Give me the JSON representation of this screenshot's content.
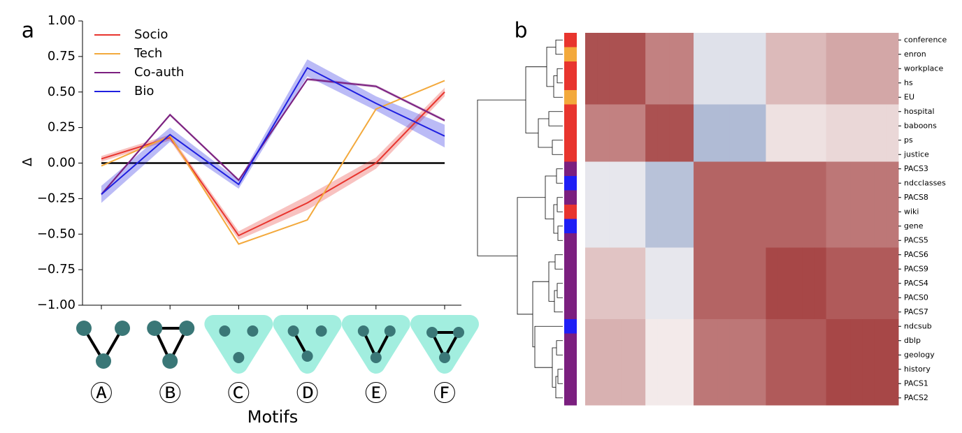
{
  "chart_data": [
    {
      "type": "line",
      "panel_label": "a",
      "x_label": "Motifs",
      "y_label": "Δ",
      "categories": [
        "Ⓐ",
        "Ⓑ",
        "Ⓒ",
        "Ⓓ",
        "Ⓔ",
        "Ⓕ"
      ],
      "ylim": [
        -1,
        1
      ],
      "yticks": [
        {
          "value": -1,
          "label": "−1.00"
        },
        {
          "value": -0.75,
          "label": "−0.75"
        },
        {
          "value": -0.5,
          "label": "−0.50"
        },
        {
          "value": -0.25,
          "label": "−0.25"
        },
        {
          "value": 0,
          "label": "0.00"
        },
        {
          "value": 0.25,
          "label": "0.25"
        },
        {
          "value": 0.5,
          "label": "0.50"
        },
        {
          "value": 0.75,
          "label": "0.75"
        },
        {
          "value": 1,
          "label": "1.00"
        }
      ],
      "hline": 0,
      "legend": "upper left",
      "series": [
        {
          "name": "Socio",
          "color": "#e8352e",
          "values": [
            0.03,
            0.18,
            -0.51,
            -0.28,
            0.0,
            0.5
          ],
          "errors": [
            0.02,
            0.02,
            0.03,
            0.05,
            0.04,
            0.03
          ]
        },
        {
          "name": "Tech",
          "color": "#f3a93c",
          "values": [
            -0.02,
            0.19,
            -0.57,
            -0.4,
            0.38,
            0.58
          ]
        },
        {
          "name": "Co-auth",
          "color": "#7b1f7f",
          "values": [
            -0.22,
            0.34,
            -0.12,
            0.59,
            0.54,
            0.3
          ],
          "errors": [
            0.01,
            0.01,
            0.01,
            0.01,
            0.01,
            0.01
          ]
        },
        {
          "name": "Bio",
          "color": "#1f1fe0",
          "values": [
            -0.22,
            0.2,
            -0.15,
            0.67,
            0.42,
            0.19
          ],
          "errors": [
            0.06,
            0.05,
            0.03,
            0.06,
            0.05,
            0.08
          ]
        }
      ]
    },
    {
      "type": "heatmap",
      "panel_label": "b",
      "clim": [
        -1,
        1
      ],
      "colormap": [
        "#5a76b0",
        "#f7f4f4",
        "#9e3434"
      ],
      "rows": [
        "conference",
        "enron",
        "workplace",
        "hs",
        "EU",
        "hospital",
        "baboons",
        "ps",
        "justice",
        "PACS3",
        "ndcclasses",
        "PACS8",
        "wiki",
        "gene",
        "PACS5",
        "PACS6",
        "PACS9",
        "PACS4",
        "PACS0",
        "PACS7",
        "ndcsub",
        "dblp",
        "geology",
        "history",
        "PACS1",
        "PACS2"
      ],
      "row_colors": [
        "#e8352e",
        "#f3a93c",
        "#e8352e",
        "#e8352e",
        "#f3a93c",
        "#e8352e",
        "#e8352e",
        "#e8352e",
        "#e8352e",
        "#7b1f7f",
        "#1f1ff5",
        "#7b1f7f",
        "#e8352e",
        "#1f1ff5",
        "#7b1f7f",
        "#7b1f7f",
        "#7b1f7f",
        "#7b1f7f",
        "#7b1f7f",
        "#7b1f7f",
        "#1f1ff5",
        "#7b1f7f",
        "#7b1f7f",
        "#7b1f7f",
        "#7b1f7f",
        "#7b1f7f"
      ],
      "matrix": [
        [
          0.85,
          0.85,
          0.85,
          0.85,
          0.85,
          0.6,
          0.6,
          0.6,
          0.6,
          -0.15,
          -0.15,
          -0.15,
          -0.15,
          -0.15,
          -0.15,
          0.3,
          0.3,
          0.3,
          0.3,
          0.3,
          0.4,
          0.4,
          0.4,
          0.4,
          0.4,
          0.4
        ],
        [
          0.85,
          0.85,
          0.85,
          0.85,
          0.85,
          0.6,
          0.6,
          0.6,
          0.6,
          -0.15,
          -0.15,
          -0.15,
          -0.15,
          -0.15,
          -0.15,
          0.3,
          0.3,
          0.3,
          0.3,
          0.3,
          0.4,
          0.4,
          0.4,
          0.4,
          0.4,
          0.4
        ],
        [
          0.85,
          0.85,
          0.85,
          0.85,
          0.85,
          0.6,
          0.6,
          0.6,
          0.6,
          -0.15,
          -0.15,
          -0.15,
          -0.15,
          -0.15,
          -0.15,
          0.3,
          0.3,
          0.3,
          0.3,
          0.3,
          0.4,
          0.4,
          0.4,
          0.4,
          0.4,
          0.4
        ],
        [
          0.85,
          0.85,
          0.85,
          0.85,
          0.85,
          0.6,
          0.6,
          0.6,
          0.6,
          -0.15,
          -0.15,
          -0.15,
          -0.15,
          -0.15,
          -0.15,
          0.3,
          0.3,
          0.3,
          0.3,
          0.3,
          0.4,
          0.4,
          0.4,
          0.4,
          0.4,
          0.4
        ],
        [
          0.85,
          0.85,
          0.85,
          0.85,
          0.85,
          0.6,
          0.6,
          0.6,
          0.6,
          -0.15,
          -0.15,
          -0.15,
          -0.15,
          -0.15,
          -0.15,
          0.3,
          0.3,
          0.3,
          0.3,
          0.3,
          0.4,
          0.4,
          0.4,
          0.4,
          0.4,
          0.4
        ],
        [
          0.6,
          0.6,
          0.6,
          0.6,
          0.6,
          0.85,
          0.85,
          0.85,
          0.85,
          -0.45,
          -0.45,
          -0.45,
          -0.45,
          -0.45,
          -0.45,
          0.1,
          0.1,
          0.1,
          0.1,
          0.1,
          0.15,
          0.15,
          0.15,
          0.15,
          0.15,
          0.15
        ],
        [
          0.6,
          0.6,
          0.6,
          0.6,
          0.6,
          0.85,
          0.85,
          0.85,
          0.85,
          -0.45,
          -0.45,
          -0.45,
          -0.45,
          -0.45,
          -0.45,
          0.1,
          0.1,
          0.1,
          0.1,
          0.1,
          0.15,
          0.15,
          0.15,
          0.15,
          0.15,
          0.15
        ],
        [
          0.6,
          0.6,
          0.6,
          0.6,
          0.6,
          0.85,
          0.85,
          0.85,
          0.85,
          -0.45,
          -0.45,
          -0.45,
          -0.45,
          -0.45,
          -0.45,
          0.1,
          0.1,
          0.1,
          0.1,
          0.1,
          0.15,
          0.15,
          0.15,
          0.15,
          0.15,
          0.15
        ],
        [
          0.6,
          0.6,
          0.6,
          0.6,
          0.6,
          0.85,
          0.85,
          0.85,
          0.85,
          -0.45,
          -0.45,
          -0.45,
          -0.45,
          -0.45,
          -0.45,
          0.1,
          0.1,
          0.1,
          0.1,
          0.1,
          0.15,
          0.15,
          0.15,
          0.15,
          0.15,
          0.15
        ],
        [
          -0.1,
          -0.1,
          -0.1,
          -0.1,
          -0.1,
          -0.4,
          -0.4,
          -0.4,
          -0.4,
          0.75,
          0.75,
          0.75,
          0.75,
          0.75,
          0.75,
          0.75,
          0.75,
          0.75,
          0.75,
          0.75,
          0.65,
          0.65,
          0.65,
          0.65,
          0.65,
          0.65
        ],
        [
          -0.1,
          -0.1,
          -0.1,
          -0.1,
          -0.1,
          -0.4,
          -0.4,
          -0.4,
          -0.4,
          0.75,
          0.75,
          0.75,
          0.75,
          0.75,
          0.75,
          0.75,
          0.75,
          0.75,
          0.75,
          0.75,
          0.65,
          0.65,
          0.65,
          0.65,
          0.65,
          0.65
        ],
        [
          -0.1,
          -0.1,
          -0.1,
          -0.1,
          -0.1,
          -0.4,
          -0.4,
          -0.4,
          -0.4,
          0.75,
          0.75,
          0.75,
          0.75,
          0.75,
          0.75,
          0.75,
          0.75,
          0.75,
          0.75,
          0.75,
          0.65,
          0.65,
          0.65,
          0.65,
          0.65,
          0.65
        ],
        [
          -0.1,
          -0.1,
          -0.1,
          -0.1,
          -0.1,
          -0.4,
          -0.4,
          -0.4,
          -0.4,
          0.75,
          0.75,
          0.75,
          0.75,
          0.75,
          0.75,
          0.75,
          0.75,
          0.75,
          0.75,
          0.75,
          0.65,
          0.65,
          0.65,
          0.65,
          0.65,
          0.65
        ],
        [
          -0.1,
          -0.1,
          -0.1,
          -0.1,
          -0.1,
          -0.4,
          -0.4,
          -0.4,
          -0.4,
          0.75,
          0.75,
          0.75,
          0.75,
          0.75,
          0.75,
          0.75,
          0.75,
          0.75,
          0.75,
          0.75,
          0.65,
          0.65,
          0.65,
          0.65,
          0.65,
          0.65
        ],
        [
          -0.1,
          -0.1,
          -0.1,
          -0.1,
          -0.1,
          -0.4,
          -0.4,
          -0.4,
          -0.4,
          0.75,
          0.75,
          0.75,
          0.75,
          0.75,
          0.75,
          0.75,
          0.75,
          0.75,
          0.75,
          0.75,
          0.65,
          0.65,
          0.65,
          0.65,
          0.65,
          0.65
        ],
        [
          0.25,
          0.25,
          0.25,
          0.25,
          0.25,
          -0.1,
          -0.1,
          -0.1,
          -0.1,
          0.75,
          0.75,
          0.75,
          0.75,
          0.75,
          0.75,
          0.9,
          0.9,
          0.9,
          0.9,
          0.9,
          0.8,
          0.8,
          0.8,
          0.8,
          0.8,
          0.8
        ],
        [
          0.25,
          0.25,
          0.25,
          0.25,
          0.25,
          -0.1,
          -0.1,
          -0.1,
          -0.1,
          0.75,
          0.75,
          0.75,
          0.75,
          0.75,
          0.75,
          0.9,
          0.9,
          0.9,
          0.9,
          0.9,
          0.8,
          0.8,
          0.8,
          0.8,
          0.8,
          0.8
        ],
        [
          0.25,
          0.25,
          0.25,
          0.25,
          0.25,
          -0.1,
          -0.1,
          -0.1,
          -0.1,
          0.75,
          0.75,
          0.75,
          0.75,
          0.75,
          0.75,
          0.9,
          0.9,
          0.9,
          0.9,
          0.9,
          0.8,
          0.8,
          0.8,
          0.8,
          0.8,
          0.8
        ],
        [
          0.25,
          0.25,
          0.25,
          0.25,
          0.25,
          -0.1,
          -0.1,
          -0.1,
          -0.1,
          0.75,
          0.75,
          0.75,
          0.75,
          0.75,
          0.75,
          0.9,
          0.9,
          0.9,
          0.9,
          0.9,
          0.8,
          0.8,
          0.8,
          0.8,
          0.8,
          0.8
        ],
        [
          0.25,
          0.25,
          0.25,
          0.25,
          0.25,
          -0.1,
          -0.1,
          -0.1,
          -0.1,
          0.75,
          0.75,
          0.75,
          0.75,
          0.75,
          0.75,
          0.9,
          0.9,
          0.9,
          0.9,
          0.9,
          0.8,
          0.8,
          0.8,
          0.8,
          0.8,
          0.8
        ],
        [
          0.35,
          0.35,
          0.35,
          0.35,
          0.35,
          0.05,
          0.05,
          0.05,
          0.05,
          0.65,
          0.65,
          0.65,
          0.65,
          0.65,
          0.65,
          0.8,
          0.8,
          0.8,
          0.8,
          0.8,
          0.9,
          0.9,
          0.9,
          0.9,
          0.9,
          0.9
        ],
        [
          0.35,
          0.35,
          0.35,
          0.35,
          0.35,
          0.05,
          0.05,
          0.05,
          0.05,
          0.65,
          0.65,
          0.65,
          0.65,
          0.65,
          0.65,
          0.8,
          0.8,
          0.8,
          0.8,
          0.8,
          0.9,
          0.9,
          0.9,
          0.9,
          0.9,
          0.9
        ],
        [
          0.35,
          0.35,
          0.35,
          0.35,
          0.35,
          0.05,
          0.05,
          0.05,
          0.05,
          0.65,
          0.65,
          0.65,
          0.65,
          0.65,
          0.65,
          0.8,
          0.8,
          0.8,
          0.8,
          0.8,
          0.9,
          0.9,
          0.9,
          0.9,
          0.9,
          0.9
        ],
        [
          0.35,
          0.35,
          0.35,
          0.35,
          0.35,
          0.05,
          0.05,
          0.05,
          0.05,
          0.65,
          0.65,
          0.65,
          0.65,
          0.65,
          0.65,
          0.8,
          0.8,
          0.8,
          0.8,
          0.8,
          0.9,
          0.9,
          0.9,
          0.9,
          0.9,
          0.9
        ],
        [
          0.35,
          0.35,
          0.35,
          0.35,
          0.35,
          0.05,
          0.05,
          0.05,
          0.05,
          0.65,
          0.65,
          0.65,
          0.65,
          0.65,
          0.65,
          0.8,
          0.8,
          0.8,
          0.8,
          0.8,
          0.9,
          0.9,
          0.9,
          0.9,
          0.9,
          0.9
        ],
        [
          0.35,
          0.35,
          0.35,
          0.35,
          0.35,
          0.05,
          0.05,
          0.05,
          0.05,
          0.65,
          0.65,
          0.65,
          0.65,
          0.65,
          0.65,
          0.8,
          0.8,
          0.8,
          0.8,
          0.8,
          0.9,
          0.9,
          0.9,
          0.9,
          0.9,
          0.9
        ]
      ]
    }
  ]
}
